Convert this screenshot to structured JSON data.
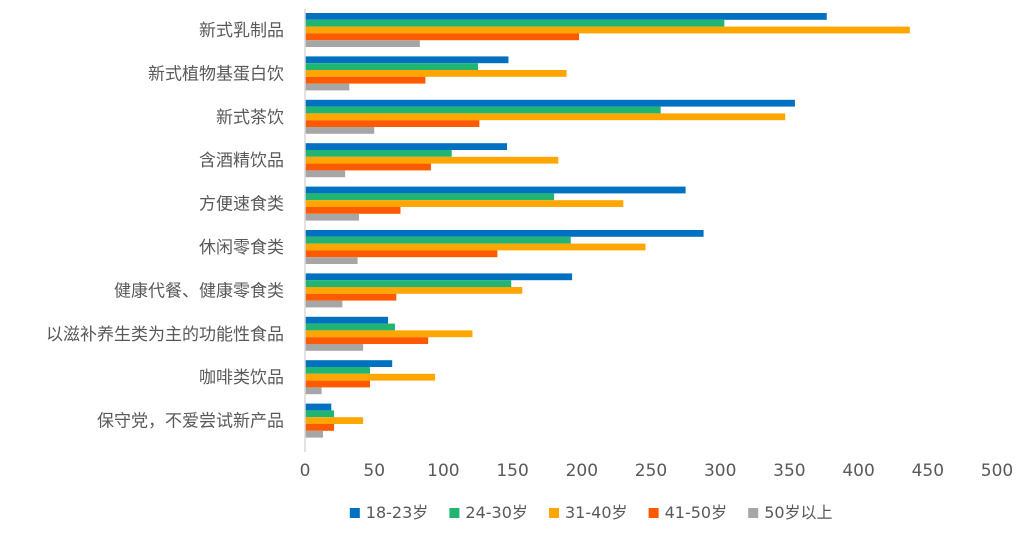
{
  "chart_data": {
    "type": "bar",
    "orientation": "horizontal",
    "categories": [
      "新式乳制品",
      "新式植物基蛋白饮",
      "新式茶饮",
      "含酒精饮品",
      "方便速食类",
      "休闲零食类",
      "健康代餐、健康零食类",
      "以滋补养生类为主的功能性食品",
      "咖啡类饮品",
      "保守党，不爱尝试新产品"
    ],
    "series": [
      {
        "name": "18-23岁",
        "color": "#0070C0",
        "values": [
          377,
          147,
          354,
          146,
          275,
          288,
          193,
          60,
          63,
          19
        ]
      },
      {
        "name": "24-30岁",
        "color": "#21B573",
        "values": [
          303,
          125,
          257,
          106,
          180,
          192,
          149,
          65,
          47,
          21
        ]
      },
      {
        "name": "31-40岁",
        "color": "#FFA600",
        "values": [
          437,
          189,
          347,
          183,
          230,
          246,
          157,
          121,
          94,
          42
        ]
      },
      {
        "name": "41-50岁",
        "color": "#FF5A00",
        "values": [
          198,
          87,
          126,
          91,
          69,
          139,
          66,
          89,
          47,
          21
        ]
      },
      {
        "name": "50岁以上",
        "color": "#A6A6A6",
        "values": [
          83,
          32,
          50,
          29,
          39,
          38,
          27,
          42,
          12,
          13
        ]
      }
    ],
    "xlim": [
      0,
      500
    ],
    "x_ticks": [
      "0",
      "50",
      "100",
      "150",
      "200",
      "250",
      "300",
      "350",
      "400",
      "450",
      "500"
    ],
    "grid": false,
    "legend_position": "bottom",
    "title": "",
    "xlabel": "",
    "ylabel": ""
  }
}
